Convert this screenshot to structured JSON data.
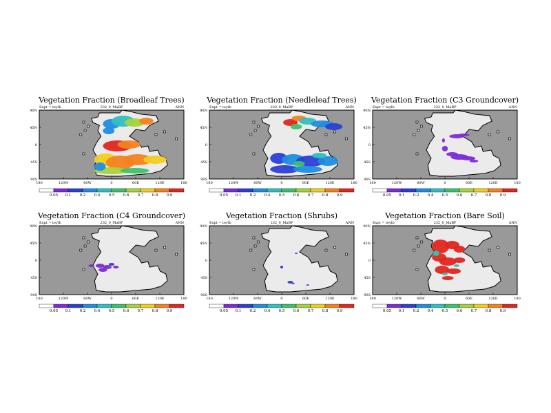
{
  "figure": {
    "panels": [
      {
        "title": "Vegetation Fraction (Broadleaf Trees)",
        "expt": "Expt = teylb",
        "run": "232_0_MaBP",
        "season": "ANN",
        "xticks": [
          "180",
          "120W",
          "60W",
          "0",
          "60E",
          "120E",
          "180"
        ],
        "yticks": [
          "90N",
          "45N",
          "0",
          "45S",
          "90S"
        ],
        "cb_labels": [
          "0.05",
          "0.1",
          "0.2",
          "0.4",
          "0.5",
          "0.6",
          "0.7",
          "0.8",
          "0.9"
        ],
        "map": "broadleaf"
      },
      {
        "title": "Vegetation Fraction (Needleleaf Trees)",
        "expt": "Expt = teylb",
        "run": "232_0_MaBP",
        "season": "ANN",
        "xticks": [
          "180",
          "120W",
          "60W",
          "0",
          "60E",
          "120E",
          "180"
        ],
        "yticks": [
          "90N",
          "45N",
          "0",
          "45S",
          "90S"
        ],
        "cb_labels": [
          "0.05",
          "0.1",
          "0.2",
          "0.4",
          "0.5",
          "0.6",
          "0.7",
          "0.8",
          "0.9"
        ],
        "map": "needleleaf"
      },
      {
        "title": "Vegetation Fraction (C3 Groundcover)",
        "expt": "Expt = teylb",
        "run": "232_0_MaBP",
        "season": "ANN",
        "xticks": [
          "180",
          "120W",
          "60W",
          "0",
          "60E",
          "120E",
          "180"
        ],
        "yticks": [
          "90N",
          "45N",
          "0",
          "45S",
          "90S"
        ],
        "cb_labels": [
          "0.05",
          "0.1",
          "0.2",
          "0.4",
          "0.5",
          "0.6",
          "0.7",
          "0.8",
          "0.9"
        ],
        "map": "c3"
      },
      {
        "title": "Vegetation Fraction (C4 Groundcover)",
        "expt": "Expt = teylb",
        "run": "232_0_MaBP",
        "season": "ANN",
        "xticks": [
          "180",
          "120W",
          "60W",
          "0",
          "60E",
          "120E",
          "180"
        ],
        "yticks": [
          "90N",
          "45N",
          "0",
          "45S",
          "90S"
        ],
        "cb_labels": [
          "0.05",
          "0.1",
          "0.2",
          "0.4",
          "0.5",
          "0.6",
          "0.7",
          "0.8",
          "0.9"
        ],
        "map": "c4"
      },
      {
        "title": "Vegetation Fraction (Shrubs)",
        "expt": "Expt = teylb",
        "run": "232_0_MaBP",
        "season": "ANN",
        "xticks": [
          "180",
          "120W",
          "60W",
          "0",
          "60E",
          "120E",
          "180"
        ],
        "yticks": [
          "90N",
          "45N",
          "0",
          "45S",
          "90S"
        ],
        "cb_labels": [
          "0.05",
          "0.1",
          "0.2",
          "0.4",
          "0.5",
          "0.6",
          "0.7",
          "0.8",
          "0.9"
        ],
        "map": "shrubs"
      },
      {
        "title": "Vegetation Fraction (Bare Soil)",
        "expt": "Expt = teylb",
        "run": "232_0_MaBP",
        "season": "ANN",
        "xticks": [
          "180",
          "120W",
          "60W",
          "0",
          "60E",
          "120E",
          "180"
        ],
        "yticks": [
          "90N",
          "45N",
          "0",
          "45S",
          "90S"
        ],
        "cb_labels": [
          "0.05",
          "0.1",
          "0.2",
          "0.4",
          "0.5",
          "0.6",
          "0.7",
          "0.8",
          "0.9"
        ],
        "map": "bare"
      }
    ]
  },
  "chart_data": [
    {
      "type": "heatmap",
      "title": "Vegetation Fraction (Broadleaf Trees)",
      "xlabel": "",
      "ylabel": "",
      "xlim": [
        -180,
        180
      ],
      "ylim": [
        -90,
        90
      ],
      "colorbar_levels": [
        0.05,
        0.1,
        0.2,
        0.4,
        0.5,
        0.6,
        0.7,
        0.8,
        0.9
      ]
    },
    {
      "type": "heatmap",
      "title": "Vegetation Fraction (Needleleaf Trees)",
      "xlabel": "",
      "ylabel": "",
      "xlim": [
        -180,
        180
      ],
      "ylim": [
        -90,
        90
      ],
      "colorbar_levels": [
        0.05,
        0.1,
        0.2,
        0.4,
        0.5,
        0.6,
        0.7,
        0.8,
        0.9
      ]
    },
    {
      "type": "heatmap",
      "title": "Vegetation Fraction (C3 Groundcover)",
      "xlabel": "",
      "ylabel": "",
      "xlim": [
        -180,
        180
      ],
      "ylim": [
        -90,
        90
      ],
      "colorbar_levels": [
        0.05,
        0.1,
        0.2,
        0.4,
        0.5,
        0.6,
        0.7,
        0.8,
        0.9
      ]
    },
    {
      "type": "heatmap",
      "title": "Vegetation Fraction (C4 Groundcover)",
      "xlabel": "",
      "ylabel": "",
      "xlim": [
        -180,
        180
      ],
      "ylim": [
        -90,
        90
      ],
      "colorbar_levels": [
        0.05,
        0.1,
        0.2,
        0.4,
        0.5,
        0.6,
        0.7,
        0.8,
        0.9
      ]
    },
    {
      "type": "heatmap",
      "title": "Vegetation Fraction (Shrubs)",
      "xlabel": "",
      "ylabel": "",
      "xlim": [
        -180,
        180
      ],
      "ylim": [
        -90,
        90
      ],
      "colorbar_levels": [
        0.05,
        0.1,
        0.2,
        0.4,
        0.5,
        0.6,
        0.7,
        0.8,
        0.9
      ]
    },
    {
      "type": "heatmap",
      "title": "Vegetation Fraction (Bare Soil)",
      "xlabel": "",
      "ylabel": "",
      "xlim": [
        -180,
        180
      ],
      "ylim": [
        -90,
        90
      ],
      "colorbar_levels": [
        0.05,
        0.1,
        0.2,
        0.4,
        0.5,
        0.6,
        0.7,
        0.8,
        0.9
      ]
    }
  ],
  "colors": {
    "ocean": "#999999",
    "land": "#ebebeb",
    "outline": "#000000",
    "colorbar": [
      "#ffffff",
      "#7b2bd8",
      "#2b3fd6",
      "#1f8de0",
      "#2fc0c0",
      "#3cc36a",
      "#a6d33a",
      "#f1cf1f",
      "#f5821f",
      "#e2261d"
    ]
  }
}
